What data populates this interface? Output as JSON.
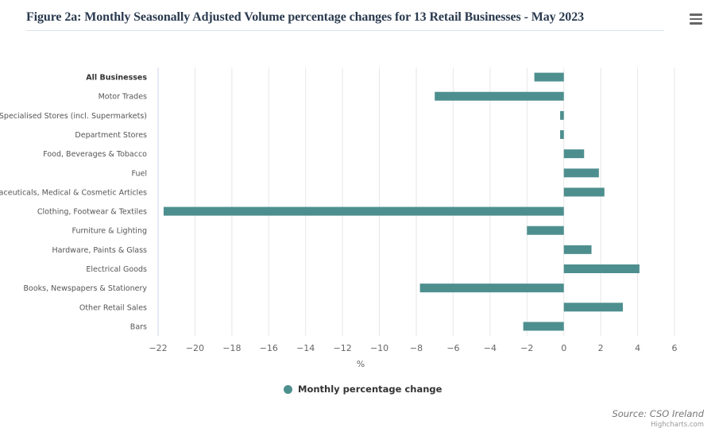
{
  "title": "Figure 2a: Monthly Seasonally Adjusted Volume percentage changes for 13 Retail Businesses - May 2023",
  "menu_icon": "hamburger-menu-icon",
  "source": "Source: CSO Ireland",
  "credits": "Highcharts.com",
  "chart_data": {
    "type": "bar",
    "orientation": "horizontal",
    "categories": [
      "All Businesses",
      "Motor Trades",
      "Non-Specialised Stores (incl. Supermarkets)",
      "Department Stores",
      "Food, Beverages & Tobacco",
      "Fuel",
      "Pharmaceuticals, Medical & Cosmetic Articles",
      "Clothing, Footwear & Textiles",
      "Furniture & Lighting",
      "Hardware, Paints & Glass",
      "Electrical Goods",
      "Books, Newspapers & Stationery",
      "Other Retail Sales",
      "Bars"
    ],
    "series": [
      {
        "name": "Monthly percentage change",
        "color": "#4d8f8e",
        "values": [
          -1.6,
          -7.0,
          -0.2,
          -0.2,
          1.1,
          1.9,
          2.2,
          -21.7,
          -2.0,
          1.5,
          4.1,
          -7.8,
          3.2,
          -2.2
        ]
      }
    ],
    "xlabel": "%",
    "xlim": [
      -22,
      6
    ],
    "xticks": [
      -22,
      -20,
      -18,
      -16,
      -14,
      -12,
      -10,
      -8,
      -6,
      -4,
      -2,
      0,
      2,
      4,
      6
    ],
    "grid": true,
    "legend": "bottom-center",
    "bold_categories": [
      "All Businesses"
    ]
  }
}
